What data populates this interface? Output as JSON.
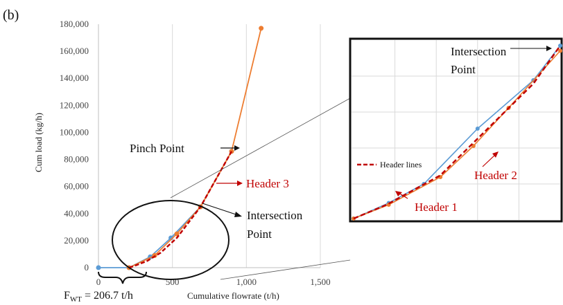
{
  "panel_label": "(b)",
  "fwt_label_main": "F",
  "fwt_label_sub": "WT",
  "fwt_label_value": " = 206.7 t/h",
  "colors": {
    "blue": "#5b9bd5",
    "orange": "#ed7d31",
    "header": "#c00000",
    "grid": "#d9d9d9",
    "black": "#111111"
  },
  "chart_data": [
    {
      "type": "line",
      "xlabel": "Cumulative flowrate (t/h)",
      "ylabel": "Cum load (kg/h)",
      "xlim": [
        0,
        1500
      ],
      "ylim": [
        0,
        180000
      ],
      "x_ticks": [
        0,
        500,
        1000,
        1500
      ],
      "x_tick_labels": [
        "0",
        "500",
        "1,000",
        "1,500"
      ],
      "y_ticks": [
        0,
        20000,
        40000,
        60000,
        80000,
        100000,
        120000,
        140000,
        160000,
        180000
      ],
      "y_tick_labels": [
        "0",
        "20,000",
        "40,000",
        "60,000",
        "80,000",
        "100,000",
        "120,000",
        "140,000",
        "160,000",
        "180,000"
      ],
      "grid": "vertical",
      "series": [
        {
          "color": "#5b9bd5",
          "x": [
            0,
            207,
            350,
            490,
            690,
            900
          ],
          "y": [
            0,
            0,
            8000,
            22000,
            45000,
            86000
          ]
        },
        {
          "color": "#ed7d31",
          "x": [
            207,
            380,
            530,
            690,
            900,
            1100
          ],
          "y": [
            0,
            9000,
            25000,
            45000,
            86000,
            177000
          ]
        },
        {
          "color": "#c00000",
          "dashed": true,
          "x": [
            207,
            260,
            330,
            420,
            530,
            690,
            900
          ],
          "y": [
            0,
            2000,
            5000,
            11000,
            22000,
            45000,
            86000
          ]
        }
      ],
      "annotations": {
        "pinch": "Pinch Point",
        "header3": "Header 3",
        "intersection_line1": "Intersection",
        "intersection_line2": "Point"
      }
    },
    {
      "type": "line",
      "inset": true,
      "series": [
        {
          "color": "#5b9bd5",
          "x": [
            0,
            0.17,
            0.34,
            0.6,
            0.87,
            1.0
          ],
          "y": [
            0,
            0.09,
            0.2,
            0.52,
            0.8,
            1.0
          ]
        },
        {
          "color": "#ed7d31",
          "x": [
            0,
            0.17,
            0.42,
            0.58,
            0.75,
            1.0
          ],
          "y": [
            0,
            0.08,
            0.24,
            0.42,
            0.64,
            0.97
          ]
        },
        {
          "name": "Header lines",
          "color": "#c00000",
          "dashed": true,
          "x": [
            0,
            0.16,
            0.42,
            0.87,
            1.0
          ],
          "y": [
            0,
            0.08,
            0.25,
            0.78,
            1.0
          ]
        }
      ],
      "legend": {
        "label": "Header lines",
        "position": "left"
      },
      "annotations": {
        "intersection_line1": "Intersection",
        "intersection_line2": "Point",
        "header1": "Header 1",
        "header2": "Header 2"
      }
    }
  ]
}
